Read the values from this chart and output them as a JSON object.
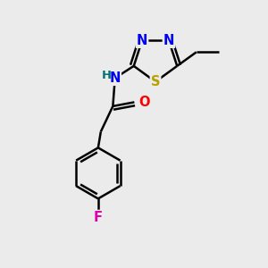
{
  "background_color": "#ebebeb",
  "bond_color": "#000000",
  "atom_colors": {
    "N": "#0000ee",
    "O": "#ff0000",
    "S": "#b8a000",
    "F": "#e000b0",
    "H": "#007070",
    "C": "#000000"
  },
  "font_size_atom": 10.5,
  "line_width": 1.8
}
